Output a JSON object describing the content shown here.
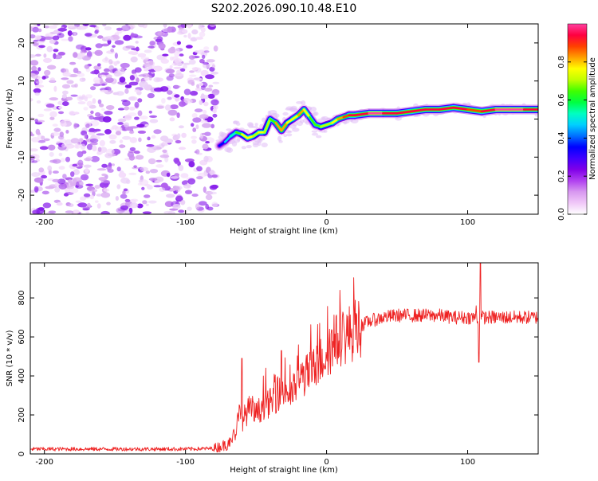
{
  "title": "S202.2026.090.10.48.E10",
  "chart_data": [
    {
      "type": "heatmap",
      "xlabel": "Height of straight line (km)",
      "ylabel": "Frequency (Hz)",
      "xlim": [
        -210,
        150
      ],
      "ylim": [
        -25,
        25
      ],
      "xticks": [
        -200,
        -100,
        0,
        100
      ],
      "yticks": [
        -20,
        -10,
        0,
        10,
        20
      ],
      "xtick_labels": [
        "-200",
        "-100",
        "0",
        "100"
      ],
      "ytick_labels": [
        "-20",
        "-10",
        "0",
        "10",
        "20"
      ],
      "noise_region_x": [
        -210,
        -78
      ],
      "ridge": {
        "description": "frequency ridge of maximum normalized spectral amplitude",
        "height_km": [
          -76,
          -72,
          -68,
          -64,
          -60,
          -56,
          -52,
          -48,
          -44,
          -40,
          -36,
          -32,
          -28,
          -24,
          -20,
          -16,
          -12,
          -8,
          -4,
          0,
          4,
          8,
          12,
          16,
          20,
          30,
          40,
          50,
          60,
          70,
          80,
          90,
          100,
          110,
          120,
          130,
          140,
          150
        ],
        "frequency_hz": [
          -7,
          -6,
          -4.5,
          -3.5,
          -4,
          -5,
          -4.5,
          -3.5,
          -3.5,
          0,
          -1,
          -3,
          -1,
          0,
          1,
          2.5,
          0.5,
          -1.5,
          -2,
          -1.5,
          -1,
          0,
          0.5,
          1,
          1,
          1.5,
          1.5,
          1.5,
          2,
          2.5,
          2.5,
          3,
          2.5,
          2,
          2.5,
          2.5,
          2.5,
          2.5
        ],
        "amplitude": [
          0.3,
          0.4,
          0.5,
          0.6,
          0.7,
          0.8,
          0.75,
          0.7,
          0.85,
          0.6,
          0.75,
          0.9,
          0.7,
          0.8,
          0.75,
          0.85,
          0.7,
          0.6,
          0.75,
          0.7,
          0.75,
          0.8,
          0.85,
          0.9,
          0.95,
          0.95,
          1.0,
          0.9,
          0.95,
          0.9,
          0.95,
          0.95,
          0.9,
          0.9,
          0.95,
          1.0,
          0.95,
          0.95
        ]
      },
      "colorbar": {
        "label": "Normalized spectral amplitude",
        "range": [
          0,
          1
        ],
        "ticks": [
          0.0,
          0.2,
          0.4,
          0.6,
          0.8
        ],
        "tick_labels": [
          "0.0",
          "0.2",
          "0.4",
          "0.6",
          "0.8"
        ],
        "colors": [
          "#ffffff",
          "#f0c8f8",
          "#d898f0",
          "#b040f0",
          "#8000e8",
          "#4000ff",
          "#0000ff",
          "#0070ff",
          "#00d0ff",
          "#00ffc0",
          "#00ff40",
          "#40ff00",
          "#c0ff00",
          "#ffff00",
          "#ffa000",
          "#ff4000",
          "#ff0040",
          "#ff40a0"
        ]
      }
    },
    {
      "type": "line",
      "xlabel": "Height of straight line (km)",
      "ylabel": "SNR (10 * v/v)",
      "xlim": [
        -210,
        150
      ],
      "ylim": [
        0,
        980
      ],
      "xticks": [
        -200,
        -100,
        0,
        100
      ],
      "yticks": [
        0,
        200,
        400,
        600,
        800
      ],
      "xtick_labels": [
        "-200",
        "-100",
        "0",
        "100"
      ],
      "ytick_labels": [
        "0",
        "200",
        "400",
        "600",
        "800"
      ],
      "series": [
        {
          "name": "SNR",
          "color": "#ee2222",
          "x": [
            -210,
            -150,
            -100,
            -80,
            -70,
            -65,
            -62,
            -60,
            -55,
            -50,
            -45,
            -40,
            -35,
            -30,
            -25,
            -20,
            -15,
            -10,
            -5,
            0,
            5,
            10,
            15,
            20,
            25,
            30,
            40,
            50,
            60,
            70,
            80,
            90,
            100,
            105,
            108,
            110,
            115,
            120,
            130,
            140,
            150
          ],
          "y": [
            25,
            25,
            25,
            28,
            50,
            100,
            200,
            170,
            230,
            200,
            250,
            260,
            300,
            330,
            300,
            380,
            400,
            430,
            470,
            520,
            560,
            600,
            610,
            640,
            660,
            680,
            700,
            710,
            710,
            710,
            710,
            700,
            700,
            700,
            690,
            700,
            700,
            700,
            700,
            700,
            700
          ]
        }
      ],
      "spikes": [
        {
          "x": -60,
          "y": 490
        },
        {
          "x": -43,
          "y": 440
        },
        {
          "x": -32,
          "y": 530
        },
        {
          "x": -20,
          "y": 560
        },
        {
          "x": -5,
          "y": 670
        },
        {
          "x": 2,
          "y": 640
        },
        {
          "x": 106,
          "y": 760
        },
        {
          "x": 108,
          "y": 470
        },
        {
          "x": 109,
          "y": 980
        }
      ]
    }
  ]
}
